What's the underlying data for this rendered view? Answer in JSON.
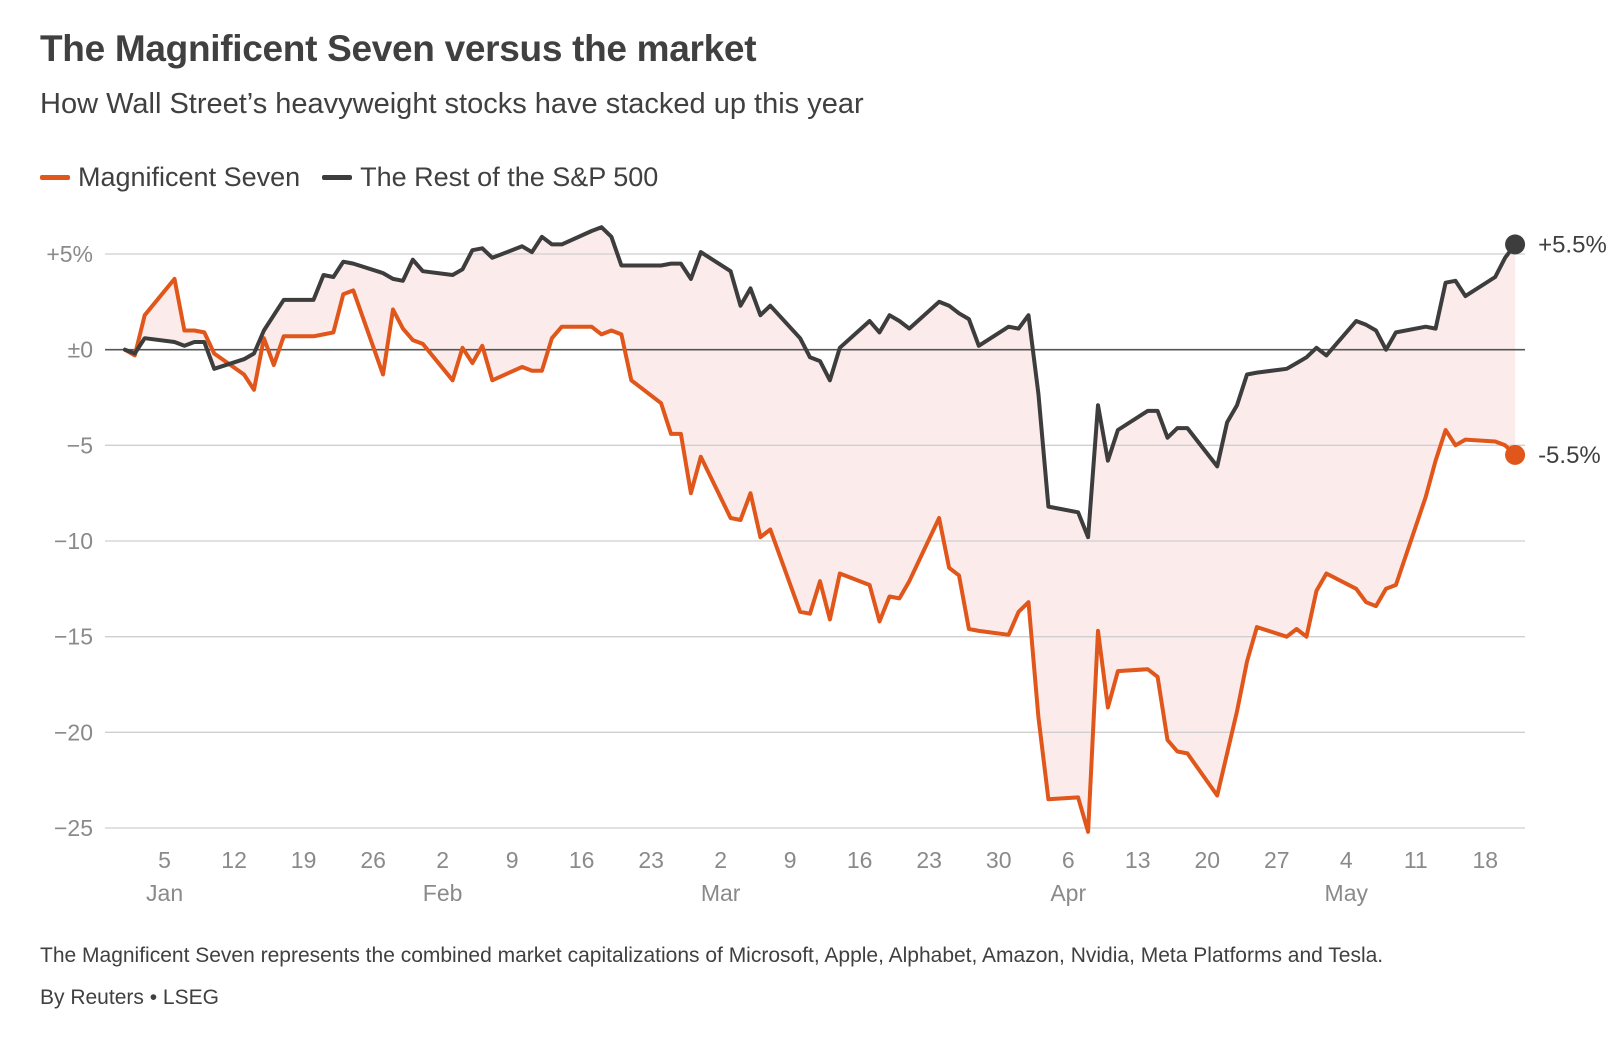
{
  "title": "The Magnificent Seven versus the market",
  "subtitle": "How Wall Street’s heavyweight stocks have stacked up this year",
  "legend": {
    "mag7": "Magnificent Seven",
    "rest": "The Rest of the S&P 500"
  },
  "colors": {
    "mag7": "#e0561b",
    "rest": "#3d3d3d",
    "fill": "#fbeceb",
    "grid": "#cfcfcf",
    "zero": "#555555"
  },
  "note": "The Magnificent Seven represents the combined market capitalizations of Microsoft, Apple, Alphabet, Amazon, Nvidia, Meta Platforms and Tesla.",
  "source": "By Reuters • LSEG",
  "chart_data": {
    "type": "line",
    "title": "The Magnificent Seven versus the market",
    "xlabel": "",
    "ylabel": "",
    "x_unit": "day of year (1 = Jan 1)",
    "xlim": [
      -1,
      142
    ],
    "ylim": [
      -25,
      5
    ],
    "y_ticks": [
      {
        "value": 5,
        "label": "+5%"
      },
      {
        "value": 0,
        "label": "±0"
      },
      {
        "value": -5,
        "label": "−5"
      },
      {
        "value": -10,
        "label": "−10"
      },
      {
        "value": -15,
        "label": "−15"
      },
      {
        "value": -20,
        "label": "−20"
      },
      {
        "value": -25,
        "label": "−25"
      }
    ],
    "x_ticks": [
      {
        "value": 5,
        "label": "5"
      },
      {
        "value": 12,
        "label": "12"
      },
      {
        "value": 19,
        "label": "19"
      },
      {
        "value": 26,
        "label": "26"
      },
      {
        "value": 33,
        "label": "2"
      },
      {
        "value": 40,
        "label": "9"
      },
      {
        "value": 47,
        "label": "16"
      },
      {
        "value": 54,
        "label": "23"
      },
      {
        "value": 61,
        "label": "2"
      },
      {
        "value": 68,
        "label": "9"
      },
      {
        "value": 75,
        "label": "16"
      },
      {
        "value": 82,
        "label": "23"
      },
      {
        "value": 89,
        "label": "30"
      },
      {
        "value": 96,
        "label": "6"
      },
      {
        "value": 103,
        "label": "13"
      },
      {
        "value": 110,
        "label": "20"
      },
      {
        "value": 117,
        "label": "27"
      },
      {
        "value": 124,
        "label": "4"
      },
      {
        "value": 131,
        "label": "11"
      },
      {
        "value": 138,
        "label": "18"
      }
    ],
    "month_labels": [
      {
        "value": 5,
        "label": "Jan"
      },
      {
        "value": 33,
        "label": "Feb"
      },
      {
        "value": 61,
        "label": "Mar"
      },
      {
        "value": 96,
        "label": "Apr"
      },
      {
        "value": 124,
        "label": "May"
      }
    ],
    "end_labels": {
      "mag7": "-5.5%",
      "rest": "+5.5%"
    },
    "series": [
      {
        "name": "Magnificent Seven",
        "key": "mag7",
        "x": [
          1,
          2,
          3,
          6,
          7,
          8,
          9,
          10,
          13,
          14,
          15,
          16,
          17,
          20,
          21,
          22,
          23,
          24,
          27,
          28,
          29,
          30,
          31,
          34,
          35,
          36,
          37,
          38,
          41,
          42,
          43,
          44,
          45,
          48,
          49,
          50,
          51,
          52,
          55,
          56,
          57,
          58,
          59,
          62,
          63,
          64,
          65,
          66,
          69,
          70,
          71,
          72,
          73,
          76,
          77,
          78,
          79,
          80,
          83,
          84,
          85,
          86,
          87,
          90,
          91,
          92,
          93,
          94,
          97,
          98,
          99,
          100,
          101,
          104,
          105,
          106,
          107,
          108,
          111,
          112,
          113,
          114,
          115,
          118,
          119,
          120,
          121,
          122,
          125,
          126,
          127,
          128,
          129,
          132,
          133,
          134,
          135,
          136,
          139,
          140,
          141
        ],
        "values": [
          0.0,
          -0.3,
          1.8,
          3.7,
          1.0,
          1.0,
          0.9,
          -0.2,
          -1.3,
          -2.1,
          0.6,
          -0.8,
          0.7,
          0.7,
          0.8,
          0.9,
          2.9,
          3.1,
          -1.3,
          2.1,
          1.1,
          0.5,
          0.3,
          -1.6,
          0.1,
          -0.7,
          0.2,
          -1.6,
          -0.9,
          -1.1,
          -1.1,
          0.6,
          1.2,
          1.2,
          0.8,
          1.0,
          0.8,
          -1.6,
          -2.8,
          -4.4,
          -4.4,
          -7.5,
          -5.6,
          -8.8,
          -8.9,
          -7.5,
          -9.8,
          -9.4,
          -13.7,
          -13.8,
          -12.1,
          -14.1,
          -11.7,
          -12.3,
          -14.2,
          -12.9,
          -13.0,
          -12.1,
          -8.8,
          -11.4,
          -11.8,
          -14.6,
          -14.7,
          -14.9,
          -13.7,
          -13.2,
          -19.2,
          -23.5,
          -23.4,
          -25.2,
          -14.7,
          -18.7,
          -16.8,
          -16.7,
          -17.1,
          -20.4,
          -21.0,
          -21.1,
          -23.3,
          -21.1,
          -18.9,
          -16.3,
          -14.5,
          -15.0,
          -14.6,
          -15.0,
          -12.6,
          -11.7,
          -12.5,
          -13.2,
          -13.4,
          -12.5,
          -12.3,
          -7.7,
          -5.8,
          -4.2,
          -5.0,
          -4.7,
          -4.8,
          -5.0,
          -5.5
        ]
      },
      {
        "name": "The Rest of the S&P 500",
        "key": "rest",
        "x": [
          1,
          2,
          3,
          6,
          7,
          8,
          9,
          10,
          13,
          14,
          15,
          16,
          17,
          20,
          21,
          22,
          23,
          24,
          27,
          28,
          29,
          30,
          31,
          34,
          35,
          36,
          37,
          38,
          41,
          42,
          43,
          44,
          45,
          48,
          49,
          50,
          51,
          52,
          55,
          56,
          57,
          58,
          59,
          62,
          63,
          64,
          65,
          66,
          69,
          70,
          71,
          72,
          73,
          76,
          77,
          78,
          79,
          80,
          83,
          84,
          85,
          86,
          87,
          90,
          91,
          92,
          93,
          94,
          97,
          98,
          99,
          100,
          101,
          104,
          105,
          106,
          107,
          108,
          111,
          112,
          113,
          114,
          115,
          118,
          119,
          120,
          121,
          122,
          125,
          126,
          127,
          128,
          129,
          132,
          133,
          134,
          135,
          136,
          139,
          140,
          141
        ],
        "values": [
          0.0,
          -0.2,
          0.6,
          0.4,
          0.2,
          0.4,
          0.4,
          -1.0,
          -0.5,
          -0.2,
          1.0,
          1.8,
          2.6,
          2.6,
          3.9,
          3.8,
          4.6,
          4.5,
          4.0,
          3.7,
          3.6,
          4.7,
          4.1,
          3.9,
          4.2,
          5.2,
          5.3,
          4.8,
          5.4,
          5.1,
          5.9,
          5.5,
          5.5,
          6.2,
          6.4,
          5.9,
          4.4,
          4.4,
          4.4,
          4.5,
          4.5,
          3.7,
          5.1,
          4.1,
          2.3,
          3.2,
          1.8,
          2.3,
          0.6,
          -0.4,
          -0.6,
          -1.6,
          0.1,
          1.5,
          0.9,
          1.8,
          1.5,
          1.1,
          2.5,
          2.3,
          1.9,
          1.6,
          0.2,
          1.2,
          1.1,
          1.8,
          -2.3,
          -8.2,
          -8.5,
          -9.8,
          -2.9,
          -5.8,
          -4.2,
          -3.2,
          -3.2,
          -4.6,
          -4.1,
          -4.1,
          -6.1,
          -3.8,
          -2.9,
          -1.3,
          -1.2,
          -1.0,
          -0.7,
          -0.4,
          0.1,
          -0.3,
          1.5,
          1.3,
          1.0,
          0.0,
          0.9,
          1.2,
          1.1,
          3.5,
          3.6,
          2.8,
          3.8,
          4.8,
          5.5
        ]
      }
    ]
  }
}
